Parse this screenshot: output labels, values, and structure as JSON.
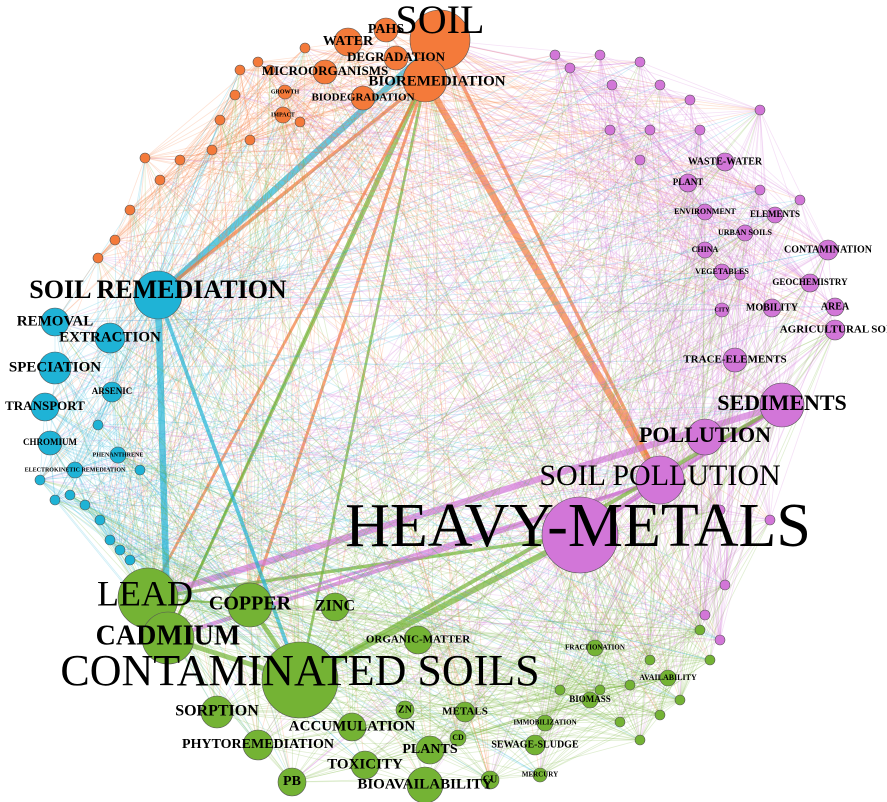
{
  "clusters": [
    {
      "color": "#f47a3a",
      "nodes": [
        "SOIL",
        "PAHS",
        "WATER",
        "DEGRADATION",
        "MICROORGANISMS",
        "BIOREMEDIATION",
        "BIODEGRADATION",
        "GROWTH",
        "IMPACT"
      ]
    },
    {
      "color": "#d276d8",
      "nodes": [
        "HEAVY-METALS",
        "SOIL POLLUTION",
        "POLLUTION",
        "SEDIMENTS",
        "TRACE-ELEMENTS",
        "AGRICULTURAL SOI",
        "AREA",
        "MOBILITY",
        "GEOCHEMISTRY",
        "CONTAMINATION",
        "ELEMENTS",
        "URBAN SOILS",
        "CHINA",
        "VEGETABLES",
        "CITY",
        "ENVIRONMENT",
        "PLANT",
        "WASTE-WATER"
      ]
    },
    {
      "color": "#1fb3d6",
      "nodes": [
        "SOIL REMEDIATION",
        "REMOVAL",
        "EXTRACTION",
        "SPECIATION",
        "ARSENIC",
        "TRANSPORT",
        "CHROMIUM",
        "PHENANTHRENE",
        "ELECTROKINETIC REMEDIATION"
      ]
    },
    {
      "color": "#74b334",
      "nodes": [
        "LEAD",
        "COPPER",
        "ZINC",
        "CADMIUM",
        "CONTAMINATED SOILS",
        "ORGANIC-MATTER",
        "SORPTION",
        "PHYTOREMEDIATION",
        "ACCUMULATION",
        "ZN",
        "METALS",
        "PLANTS",
        "CD",
        "TOXICITY",
        "BIOAVAILABILITY",
        "PB",
        "CU",
        "SEWAGE-SLUDGE",
        "MERCURY",
        "BIOMASS",
        "FRACTIONATION",
        "IMMOBILIZATION",
        "AVAILABILITY"
      ]
    }
  ]
}
